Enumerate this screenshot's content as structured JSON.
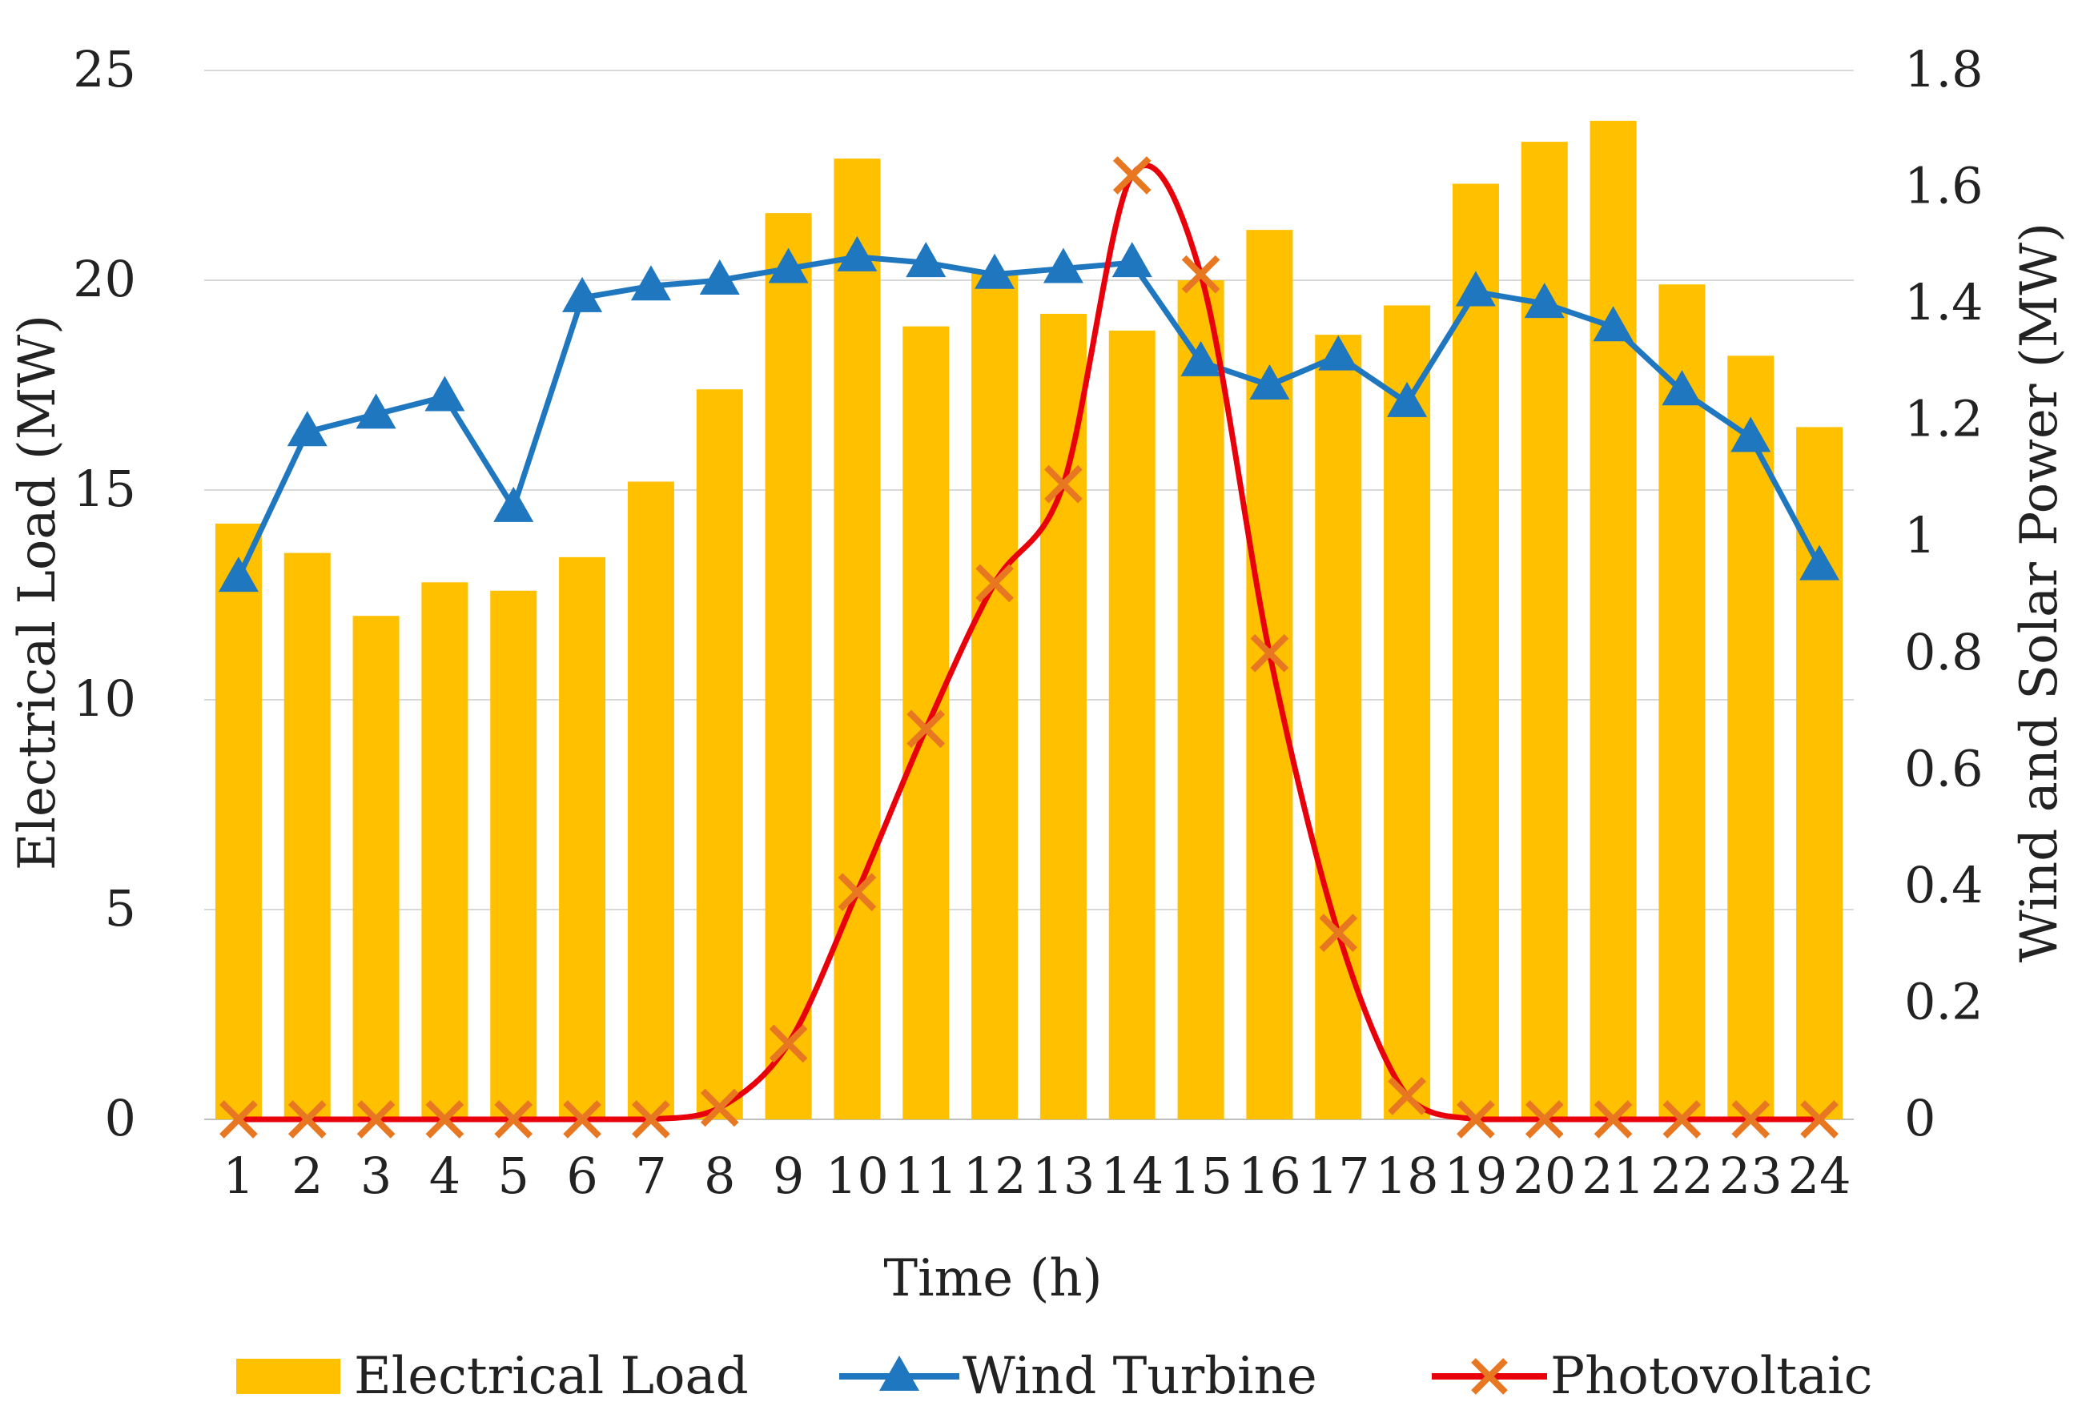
{
  "chart_data": {
    "type": "bar",
    "xlabel": "Time (h)",
    "ylabel_left": "Electrical Load  (MW)",
    "ylabel_right": "Wind and Solar Power  (MW)",
    "ylim_left": [
      0,
      25
    ],
    "ylim_right": [
      0,
      1.8
    ],
    "yticks_left": [
      "0",
      "5",
      "10",
      "15",
      "20",
      "25"
    ],
    "yticks_right": [
      "0",
      "0.2",
      "0.4",
      "0.6",
      "0.8",
      "1",
      "1.2",
      "1.4",
      "1.6",
      "1.8"
    ],
    "grid": true,
    "legend_position": "bottom",
    "categories": [
      "1",
      "2",
      "3",
      "4",
      "5",
      "6",
      "7",
      "8",
      "9",
      "10",
      "11",
      "12",
      "13",
      "14",
      "15",
      "16",
      "17",
      "18",
      "19",
      "20",
      "21",
      "22",
      "23",
      "24"
    ],
    "series": [
      {
        "name": "Electrical Load",
        "type": "bar",
        "axis": "left",
        "color": "#FFC000",
        "values": [
          14.2,
          13.5,
          12.0,
          12.8,
          12.6,
          13.4,
          15.2,
          17.4,
          21.6,
          22.9,
          18.9,
          20.2,
          19.2,
          18.8,
          20.0,
          21.2,
          18.7,
          19.4,
          22.3,
          23.3,
          23.8,
          19.9,
          18.2,
          16.5
        ]
      },
      {
        "name": "Wind Turbine",
        "type": "line",
        "marker": "triangle",
        "axis": "right",
        "color": "#1F77C0",
        "values": [
          0.93,
          1.18,
          1.21,
          1.24,
          1.05,
          1.41,
          1.43,
          1.44,
          1.46,
          1.48,
          1.47,
          1.45,
          1.46,
          1.47,
          1.3,
          1.26,
          1.31,
          1.23,
          1.42,
          1.4,
          1.36,
          1.25,
          1.17,
          0.95
        ]
      },
      {
        "name": "Photovoltaic",
        "type": "line",
        "marker": "x",
        "axis": "right",
        "color": "#E8000B",
        "marker_color": "#E87722",
        "values": [
          0,
          0,
          0,
          0,
          0,
          0,
          0,
          0.02,
          0.13,
          0.39,
          0.67,
          0.92,
          1.09,
          1.62,
          1.45,
          0.8,
          0.32,
          0.04,
          0,
          0,
          0,
          0,
          0,
          0
        ]
      }
    ]
  }
}
